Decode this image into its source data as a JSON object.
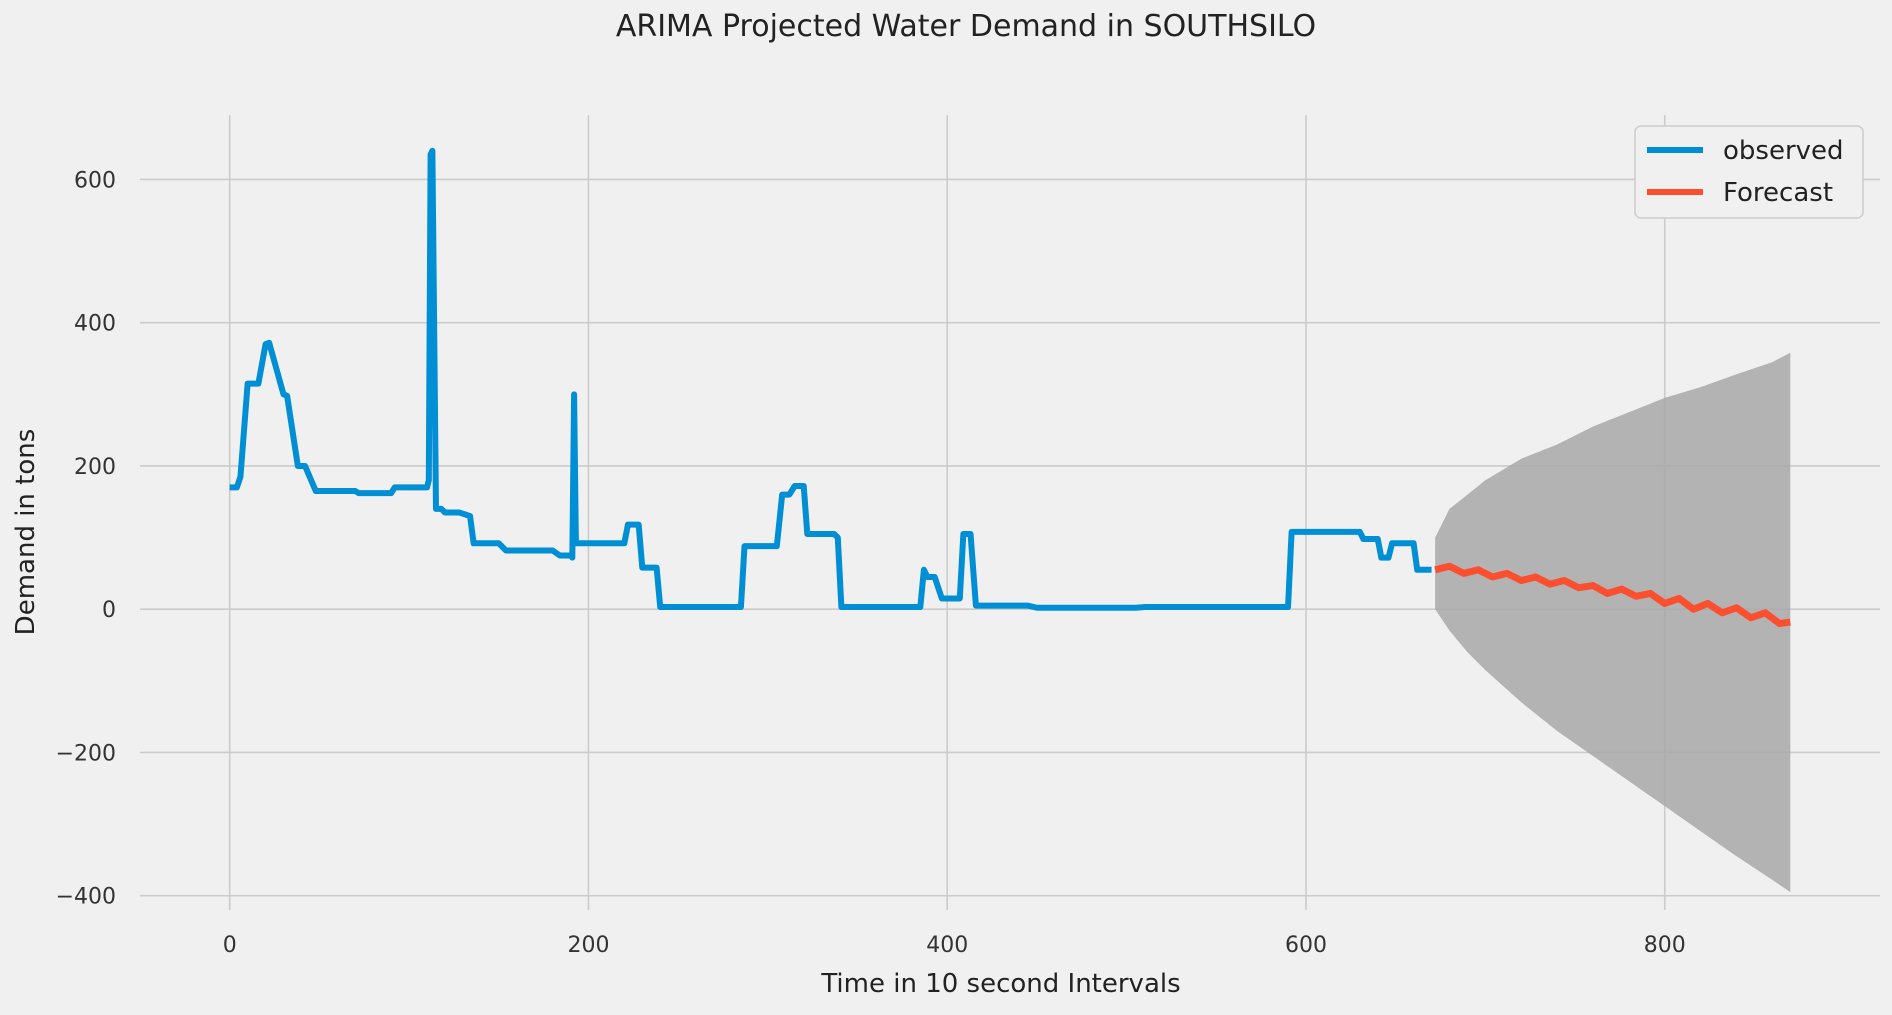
{
  "chart_data": {
    "type": "line",
    "title": "ARIMA Projected Water Demand in SOUTHSILO",
    "xlabel": "Time in 10 second Intervals",
    "ylabel": "Demand in tons",
    "xlim": [
      -50,
      920
    ],
    "ylim": [
      -420,
      690
    ],
    "xticks": [
      0,
      200,
      400,
      600,
      800
    ],
    "yticks": [
      -400,
      -200,
      0,
      200,
      400,
      600
    ],
    "xtick_labels": [
      "0",
      "200",
      "400",
      "600",
      "800"
    ],
    "ytick_labels": [
      "−400",
      "−200",
      "0",
      "200",
      "400",
      "600"
    ],
    "grid": true,
    "legend": {
      "position": "top-right",
      "entries": [
        "observed",
        "Forecast"
      ]
    },
    "colors": {
      "observed": "#008fd5",
      "forecast": "#fc4f30",
      "confidence_band": "#a8a8a8",
      "background": "#f0f0f0",
      "grid": "#cbcbcb"
    },
    "series": [
      {
        "name": "observed",
        "x": [
          0,
          4,
          6,
          10,
          16,
          20,
          22,
          30,
          32,
          38,
          42,
          48,
          70,
          72,
          90,
          92,
          110,
          111,
          112,
          113,
          115,
          118,
          120,
          128,
          134,
          136,
          150,
          154,
          180,
          184,
          190,
          191,
          192,
          193,
          195,
          220,
          222,
          228,
          230,
          238,
          240,
          244,
          285,
          287,
          289,
          305,
          308,
          312,
          315,
          320,
          322,
          337,
          339,
          341,
          385,
          387,
          389,
          393,
          397,
          399,
          407,
          409,
          413,
          416,
          418,
          445,
          450,
          505,
          510,
          590,
          592,
          594,
          630,
          632,
          640,
          642,
          646,
          648,
          660,
          662,
          670
        ],
        "y": [
          170,
          170,
          185,
          315,
          315,
          370,
          372,
          300,
          298,
          200,
          200,
          165,
          165,
          162,
          162,
          170,
          170,
          180,
          635,
          640,
          140,
          140,
          135,
          135,
          130,
          92,
          92,
          82,
          82,
          75,
          75,
          72,
          300,
          92,
          92,
          92,
          118,
          118,
          58,
          58,
          3,
          3,
          3,
          88,
          88,
          88,
          160,
          160,
          172,
          172,
          105,
          105,
          100,
          3,
          3,
          55,
          45,
          45,
          15,
          15,
          15,
          105,
          105,
          5,
          5,
          5,
          2,
          2,
          3,
          3,
          108,
          108,
          108,
          98,
          98,
          72,
          72,
          92,
          92,
          55,
          55
        ]
      },
      {
        "name": "Forecast",
        "mean_x": [
          672,
          680,
          688,
          696,
          704,
          712,
          720,
          728,
          736,
          744,
          752,
          760,
          768,
          776,
          784,
          792,
          800,
          808,
          816,
          824,
          832,
          840,
          848,
          856,
          864,
          870
        ],
        "mean_y": [
          55,
          60,
          50,
          55,
          45,
          50,
          40,
          45,
          35,
          40,
          30,
          33,
          22,
          28,
          18,
          22,
          8,
          15,
          0,
          8,
          -5,
          2,
          -12,
          -5,
          -20,
          -18
        ],
        "upper_x": [
          672,
          680,
          690,
          700,
          720,
          740,
          760,
          780,
          800,
          820,
          840,
          860,
          870
        ],
        "upper": [
          100,
          140,
          160,
          180,
          210,
          230,
          255,
          275,
          295,
          310,
          328,
          345,
          358
        ],
        "lower_x": [
          672,
          680,
          690,
          700,
          720,
          740,
          760,
          780,
          800,
          820,
          840,
          860,
          870
        ],
        "lower": [
          0,
          -30,
          -60,
          -85,
          -130,
          -170,
          -205,
          -240,
          -275,
          -310,
          -345,
          -378,
          -395
        ]
      }
    ]
  }
}
